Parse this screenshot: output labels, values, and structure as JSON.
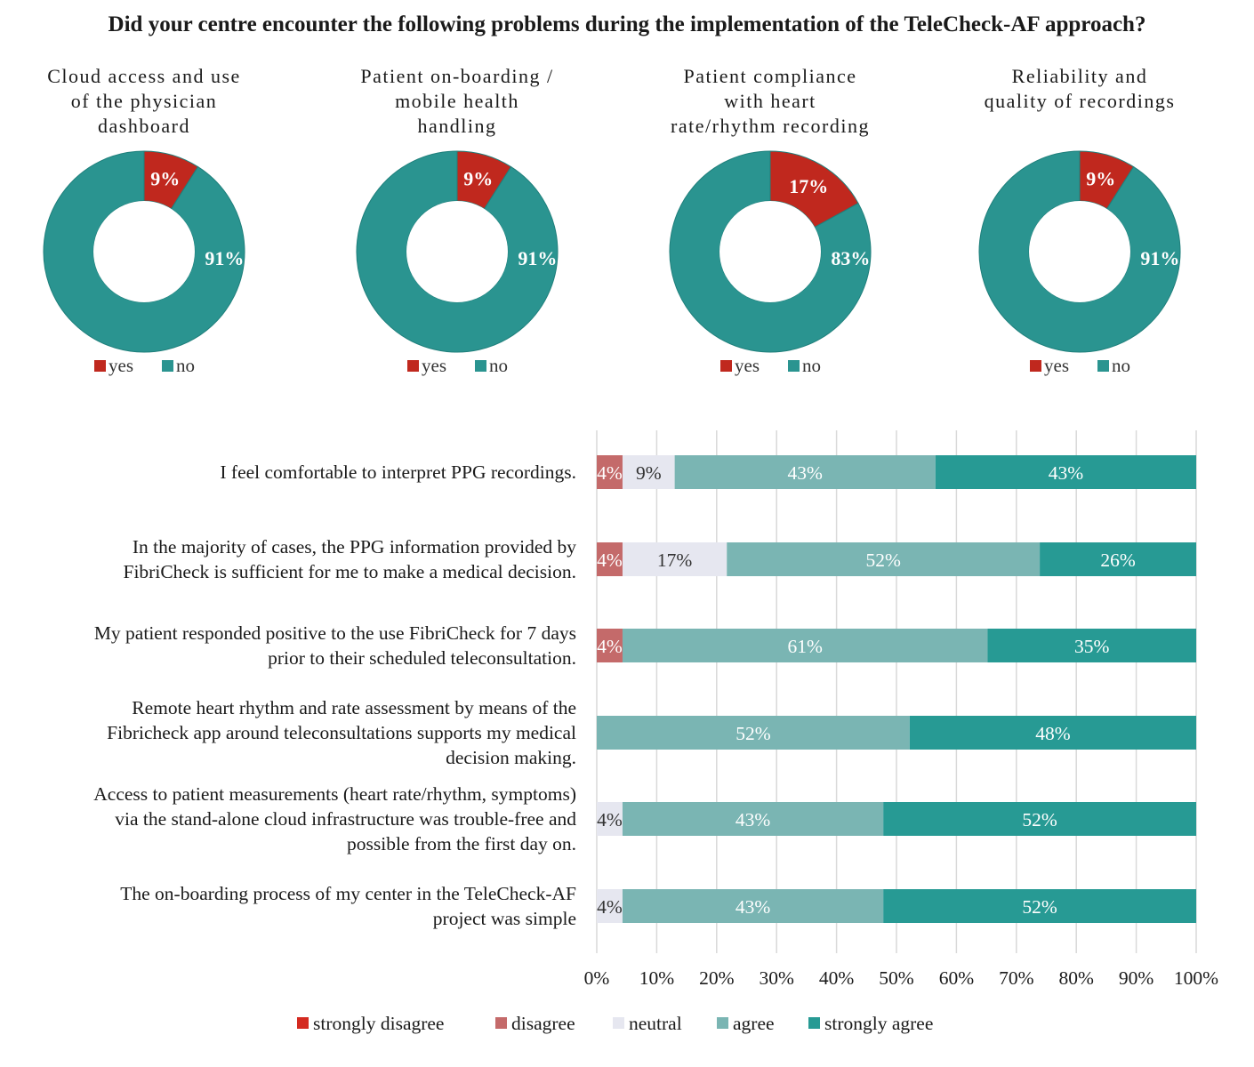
{
  "title": "Did your centre encounter the following problems during the implementation of the TeleCheck-AF approach?",
  "chart_data": [
    {
      "type": "pie",
      "donut": true,
      "title": "Cloud access and use of the physician dashboard",
      "title_lines": [
        "Cloud access and use",
        "of the physician",
        "dashboard"
      ],
      "categories": [
        "yes",
        "no"
      ],
      "values": [
        9,
        91
      ],
      "labels": [
        "9%",
        "91%"
      ],
      "colors": [
        "#c0281e",
        "#2a9490"
      ],
      "legend": "bottom"
    },
    {
      "type": "pie",
      "donut": true,
      "title": "Patient on-boarding / mobile health handling",
      "title_lines": [
        "Patient on-boarding /",
        "mobile health",
        "handling"
      ],
      "categories": [
        "yes",
        "no"
      ],
      "values": [
        9,
        91
      ],
      "labels": [
        "9%",
        "91%"
      ],
      "colors": [
        "#c0281e",
        "#2a9490"
      ],
      "legend": "bottom"
    },
    {
      "type": "pie",
      "donut": true,
      "title": "Patient compliance with heart rate/rhythm recording",
      "title_lines": [
        "Patient compliance",
        "with heart",
        "rate/rhythm recording"
      ],
      "categories": [
        "yes",
        "no"
      ],
      "values": [
        17,
        83
      ],
      "labels": [
        "17%",
        "83%"
      ],
      "colors": [
        "#c0281e",
        "#2a9490"
      ],
      "legend": "bottom"
    },
    {
      "type": "pie",
      "donut": true,
      "title": "Reliability and quality of recordings",
      "title_lines": [
        "Reliability and",
        "quality of recordings"
      ],
      "categories": [
        "yes",
        "no"
      ],
      "values": [
        9,
        91
      ],
      "labels": [
        "9%",
        "91%"
      ],
      "colors": [
        "#c0281e",
        "#2a9490"
      ],
      "legend": "bottom"
    },
    {
      "type": "bar",
      "orientation": "horizontal",
      "stacked": true,
      "xlim": [
        0,
        100
      ],
      "x_ticks": [
        "0%",
        "10%",
        "20%",
        "30%",
        "40%",
        "50%",
        "60%",
        "70%",
        "80%",
        "90%",
        "100%"
      ],
      "grid": true,
      "legend": "bottom",
      "categories": [
        [
          "I feel comfortable to interpret PPG recordings."
        ],
        [
          "In the majority of cases, the PPG information provided by",
          "FibriCheck is sufficient for me to make a medical decision."
        ],
        [
          "My patient responded positive to the use FibriCheck for 7 days",
          "prior to their scheduled teleconsultation."
        ],
        [
          "Remote heart rhythm and rate assessment by means of the",
          "Fibricheck app around teleconsultations supports my medical",
          "decision making."
        ],
        [
          "Access to patient measurements (heart rate/rhythm, symptoms)",
          "via the stand-alone cloud infrastructure was trouble-free and",
          "possible from the first day on."
        ],
        [
          "The on-boarding process of my center in the TeleCheck-AF",
          "project was simple"
        ]
      ],
      "series": [
        {
          "name": "strongly disagree",
          "color": "#d42a20",
          "values": [
            0,
            0,
            0,
            0,
            0,
            0
          ],
          "labels": [
            "",
            "",
            "",
            "",
            "",
            ""
          ]
        },
        {
          "name": "disagree",
          "color": "#c46a6a",
          "values": [
            4.3,
            4.3,
            4.3,
            0,
            0,
            0
          ],
          "labels": [
            "4%",
            "4%",
            "4%",
            "",
            "",
            ""
          ]
        },
        {
          "name": "neutral",
          "color": "#e6e7f0",
          "values": [
            8.7,
            17.4,
            0,
            0,
            4.3,
            4.3
          ],
          "labels": [
            "9%",
            "17%",
            "",
            "",
            "4%",
            "4%"
          ]
        },
        {
          "name": "agree",
          "color": "#7ab5b3",
          "values": [
            43.5,
            52.2,
            60.9,
            52.2,
            43.5,
            43.5
          ],
          "labels": [
            "43%",
            "52%",
            "61%",
            "52%",
            "43%",
            "43%"
          ]
        },
        {
          "name": "strongly agree",
          "color": "#279a94",
          "values": [
            43.5,
            26.1,
            34.8,
            47.8,
            52.2,
            52.2
          ],
          "labels": [
            "43%",
            "26%",
            "35%",
            "48%",
            "52%",
            "52%"
          ]
        }
      ]
    }
  ]
}
